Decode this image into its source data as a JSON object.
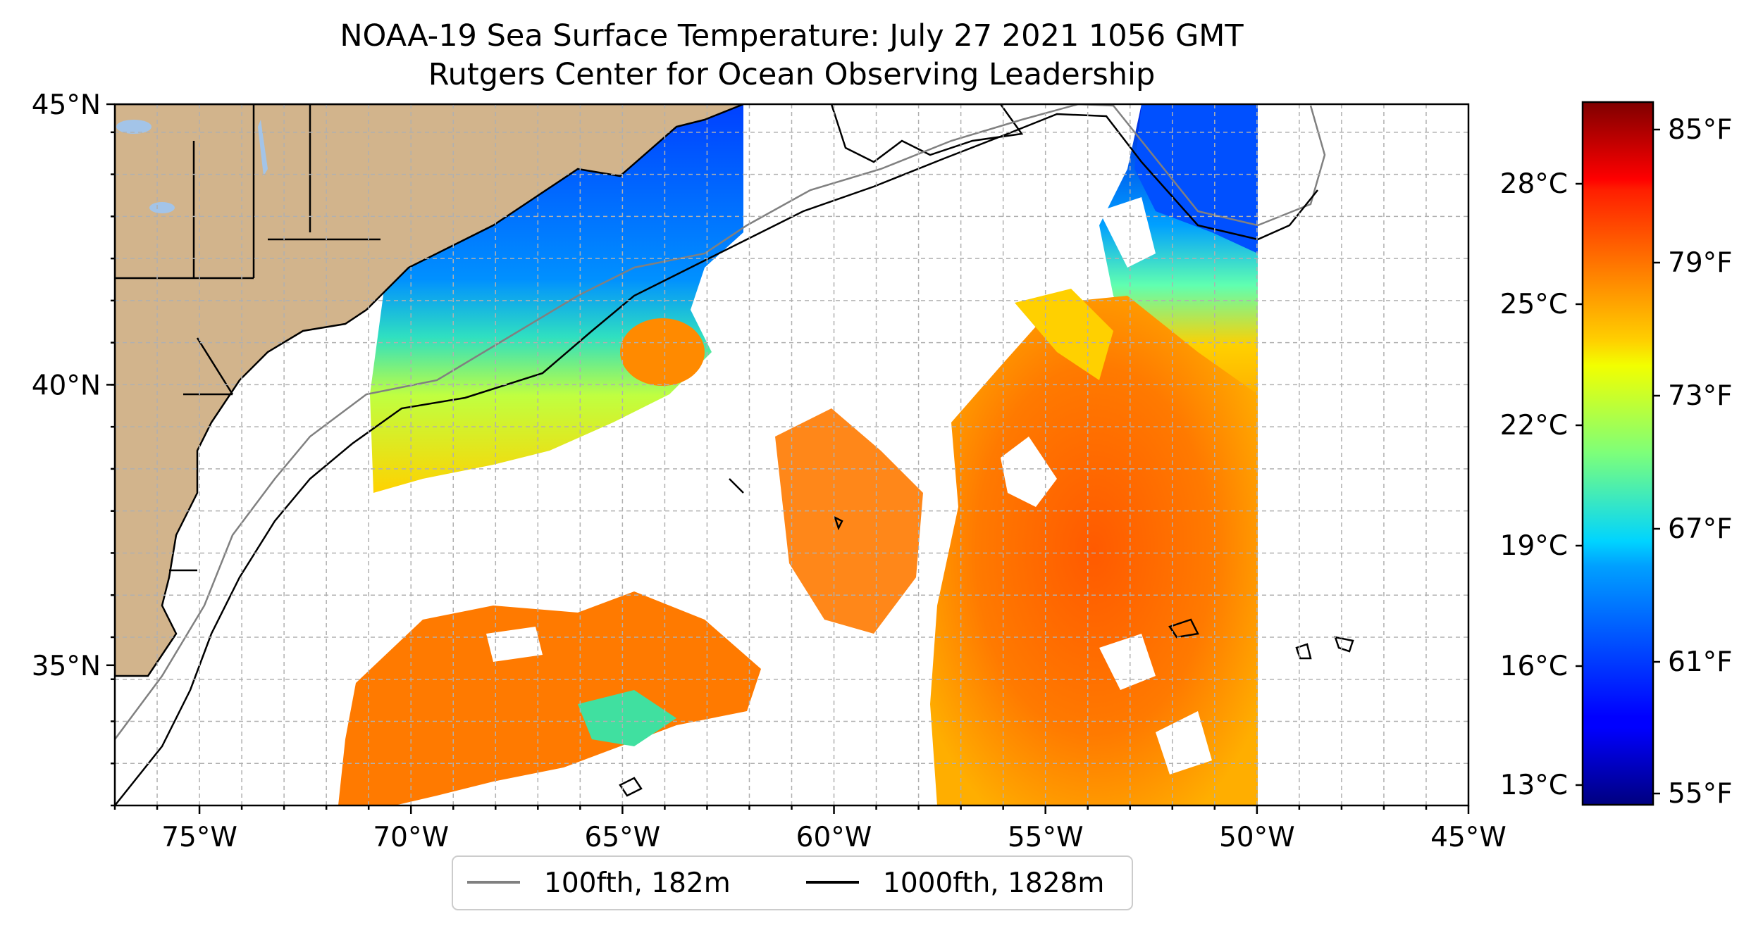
{
  "title": {
    "line1": "NOAA-19 Sea Surface Temperature: July 27 2021 1056 GMT",
    "line2": "Rutgers Center for Ocean Observing Leadership"
  },
  "map": {
    "lon_range": [
      -77,
      -45
    ],
    "lat_range": [
      32.5,
      45
    ],
    "lon_ticks": [
      {
        "value": -75,
        "label": "75°W"
      },
      {
        "value": -70,
        "label": "70°W"
      },
      {
        "value": -65,
        "label": "65°W"
      },
      {
        "value": -60,
        "label": "60°W"
      },
      {
        "value": -55,
        "label": "55°W"
      },
      {
        "value": -50,
        "label": "50°W"
      },
      {
        "value": -45,
        "label": "45°W"
      }
    ],
    "lat_ticks": [
      {
        "value": 45,
        "label": "45°N"
      },
      {
        "value": 40,
        "label": "40°N"
      },
      {
        "value": 35,
        "label": "35°N"
      }
    ],
    "land_color": "#d2b48c",
    "lake_color": "#a3c4e8"
  },
  "legend": {
    "items": [
      {
        "label": "100fth, 182m",
        "color": "#808080"
      },
      {
        "label": "1000fth, 1828m",
        "color": "#000000"
      }
    ]
  },
  "colorbar": {
    "colormap": "jet",
    "celsius_ticks": [
      "28°C",
      "25°C",
      "22°C",
      "19°C",
      "16°C",
      "13°C"
    ],
    "fahrenheit_ticks": [
      "85°F",
      "79°F",
      "73°F",
      "67°F",
      "61°F",
      "55°F"
    ]
  }
}
